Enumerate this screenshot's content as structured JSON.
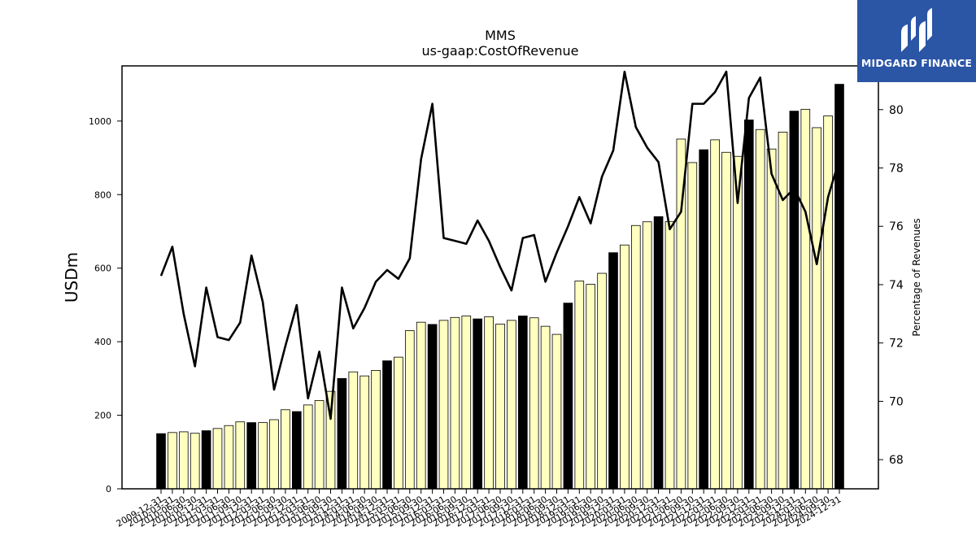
{
  "brand": {
    "name": "MIDGARD FINANCE",
    "bg_color": "#2b55a5"
  },
  "chart_data": {
    "type": "bar+line",
    "title": "MMS",
    "subtitle": "us-gaap:CostOfRevenue",
    "ylabel_left": "USDm",
    "ylabel_right": "Percentage of Revenues",
    "ylim_left": [
      0,
      1150
    ],
    "ylim_right": [
      67,
      81.5
    ],
    "yticks_left": [
      0,
      200,
      400,
      600,
      800,
      1000
    ],
    "yticks_right": [
      68,
      70,
      72,
      74,
      76,
      78,
      80
    ],
    "colors": {
      "annual_bar": "#000000",
      "quarter_bar": "#ffffc0",
      "line": "#000000"
    },
    "dates": [
      "2009-12-31",
      "2010-03-31",
      "2010-06-30",
      "2010-09-30",
      "2010-12-31",
      "2011-03-31",
      "2011-06-30",
      "2011-09-30",
      "2011-12-31",
      "2012-03-31",
      "2012-06-30",
      "2012-09-30",
      "2012-12-31",
      "2013-03-31",
      "2013-06-30",
      "2013-09-30",
      "2013-12-31",
      "2014-03-31",
      "2014-06-30",
      "2014-09-30",
      "2014-12-31",
      "2015-03-31",
      "2015-06-30",
      "2015-09-30",
      "2015-12-31",
      "2016-03-31",
      "2016-06-30",
      "2016-09-30",
      "2016-12-31",
      "2017-03-31",
      "2017-06-30",
      "2017-09-30",
      "2017-12-31",
      "2018-03-31",
      "2018-06-30",
      "2018-09-30",
      "2018-12-31",
      "2019-03-31",
      "2019-06-30",
      "2019-09-30",
      "2019-12-31",
      "2020-03-31",
      "2020-06-30",
      "2020-09-30",
      "2020-12-31",
      "2021-03-31",
      "2021-06-30",
      "2021-09-30",
      "2021-12-31",
      "2022-03-31",
      "2022-06-30",
      "2022-09-30",
      "2022-12-31",
      "2023-03-31",
      "2023-06-30",
      "2023-09-30",
      "2023-12-31",
      "2024-03-31",
      "2024-06-30",
      "2024-09-30",
      "2024-12-31"
    ],
    "is_annual": [
      true,
      false,
      false,
      false,
      true,
      false,
      false,
      false,
      true,
      false,
      false,
      false,
      true,
      false,
      false,
      false,
      true,
      false,
      false,
      false,
      true,
      false,
      false,
      false,
      true,
      false,
      false,
      false,
      true,
      false,
      false,
      false,
      true,
      false,
      false,
      false,
      true,
      false,
      false,
      false,
      true,
      false,
      false,
      false,
      true,
      false,
      false,
      false,
      true,
      false,
      false,
      false,
      true,
      false,
      false,
      false,
      true,
      false,
      false,
      false,
      true
    ],
    "cost_of_revenue": [
      150,
      153,
      155,
      151,
      158,
      164,
      172,
      182,
      180,
      180,
      188,
      215,
      210,
      228,
      240,
      265,
      300,
      318,
      307,
      322,
      348,
      358,
      430,
      453,
      447,
      458,
      466,
      470,
      462,
      468,
      448,
      458,
      470,
      465,
      442,
      420,
      505,
      565,
      556,
      586,
      642,
      663,
      716,
      726,
      740,
      727,
      951,
      887,
      922,
      949,
      915,
      904,
      1003,
      977,
      924,
      970,
      1027,
      1032,
      982,
      1014,
      1100
    ],
    "pct_of_revenue": [
      74.3,
      75.3,
      73.0,
      71.2,
      73.9,
      72.2,
      72.1,
      72.7,
      75.0,
      73.4,
      70.4,
      71.9,
      73.3,
      70.1,
      71.7,
      69.4,
      73.9,
      72.5,
      73.2,
      74.1,
      74.5,
      74.2,
      74.9,
      78.3,
      80.2,
      75.6,
      75.5,
      75.4,
      76.2,
      75.5,
      74.6,
      73.8,
      75.6,
      75.7,
      74.1,
      75.1,
      76.0,
      77.0,
      76.1,
      77.7,
      78.6,
      81.3,
      79.4,
      78.7,
      78.2,
      75.9,
      76.5,
      80.2,
      80.2,
      80.6,
      81.3,
      76.8,
      80.4,
      81.1,
      77.8,
      76.9,
      77.3,
      76.5,
      74.7,
      77.0,
      78.3
    ]
  }
}
